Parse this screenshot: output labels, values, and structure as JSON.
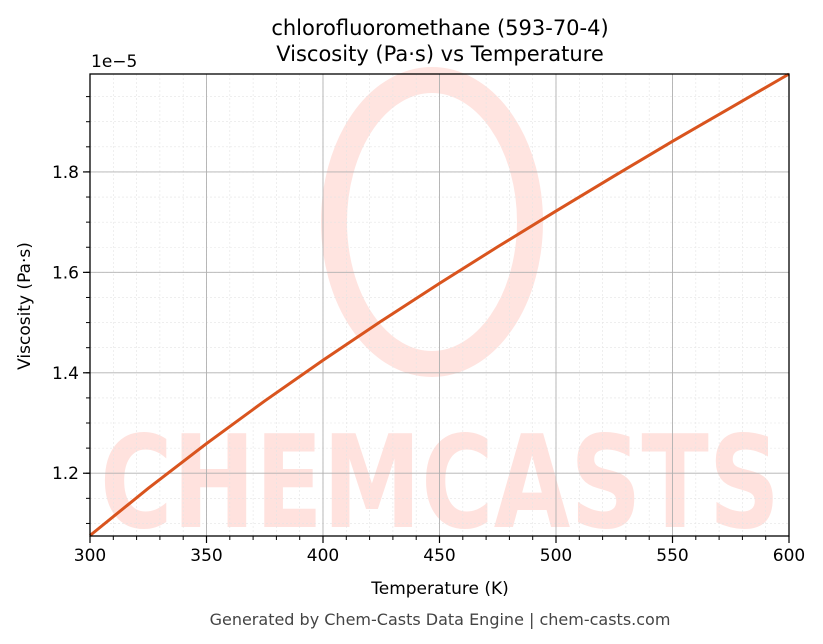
{
  "chart_data": {
    "type": "line",
    "title": "chlorofluoromethane (593-70-4)",
    "subtitle": "Viscosity (Pa·s) vs Temperature",
    "xlabel": "Temperature (K)",
    "ylabel": "Viscosity (Pa·s)",
    "y_offset_label": "1e−5",
    "xlim": [
      300,
      600
    ],
    "ylim": [
      1.075,
      1.995
    ],
    "y_scale_factor": "1e-5",
    "x_ticks": [
      300,
      350,
      400,
      450,
      500,
      550,
      600
    ],
    "x_tick_labels": [
      "300",
      "350",
      "400",
      "450",
      "500",
      "550",
      "600"
    ],
    "y_ticks": [
      1.2,
      1.4,
      1.6,
      1.8
    ],
    "y_tick_labels": [
      "1.2",
      "1.4",
      "1.6",
      "1.8"
    ],
    "grid": true,
    "line_color": "#d9541e",
    "series": [
      {
        "x": [
          300,
          325,
          350,
          375,
          400,
          425,
          450,
          475,
          500,
          525,
          550,
          575,
          600
        ],
        "values": [
          1.076,
          1.17,
          1.259,
          1.344,
          1.425,
          1.503,
          1.578,
          1.651,
          1.722,
          1.792,
          1.861,
          1.928,
          1.995
        ]
      }
    ]
  },
  "footer": "Generated by Chem-Casts Data Engine | chem-casts.com",
  "watermark": "CHEMCASTS"
}
